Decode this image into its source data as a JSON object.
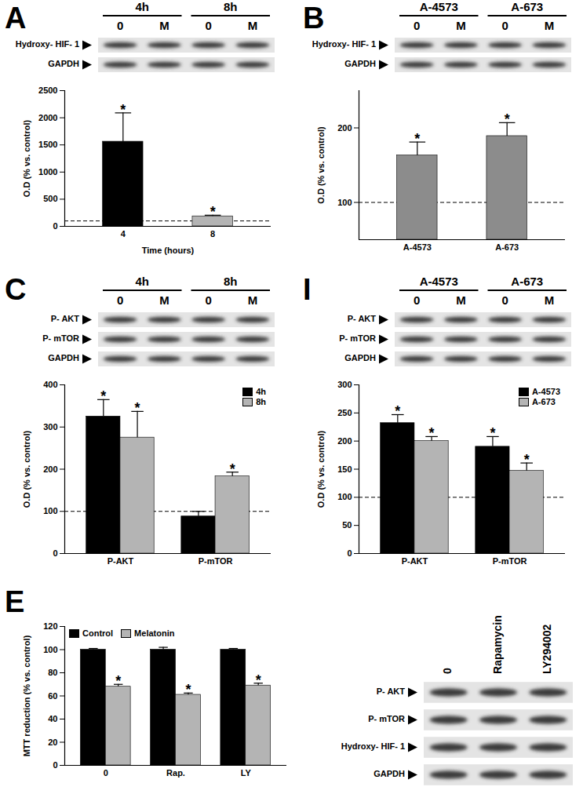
{
  "chart_data": [
    {
      "type": "bar",
      "panel": "A",
      "blot": {
        "groups": [
          {
            "label": "4h",
            "lanes": [
              "0",
              "M"
            ]
          },
          {
            "label": "8h",
            "lanes": [
              "0",
              "M"
            ]
          }
        ],
        "rows": [
          "Hydroxy- HIF- 1",
          "GAPDH"
        ]
      },
      "categories": [
        "4",
        "8"
      ],
      "values": [
        1560,
        185
      ],
      "errors": [
        530,
        20
      ],
      "colors": [
        "#000000",
        "#b4b4b4"
      ],
      "significance": [
        "*",
        "*"
      ],
      "xlabel": "Time (hours)",
      "ylabel": "O.D (% vs. control)",
      "ylim": [
        0,
        2500
      ],
      "yticks": [
        0,
        500,
        1000,
        1500,
        2000,
        2500
      ],
      "reference_line": 100
    },
    {
      "type": "bar",
      "panel": "B",
      "blot": {
        "groups": [
          {
            "label": "A-4573",
            "lanes": [
              "0",
              "M"
            ]
          },
          {
            "label": "A-673",
            "lanes": [
              "0",
              "M"
            ]
          }
        ],
        "rows": [
          "Hydroxy- HIF- 1",
          "GAPDH"
        ]
      },
      "categories": [
        "A-4573",
        "A-673"
      ],
      "values": [
        163,
        189
      ],
      "errors": [
        18,
        18
      ],
      "colors": [
        "#8c8c8c",
        "#8c8c8c"
      ],
      "significance": [
        "*",
        "*"
      ],
      "ylabel": "O.D (% vs. control)",
      "ylim": [
        50,
        250
      ],
      "yticks": [
        100,
        200
      ],
      "reference_line": 100
    },
    {
      "type": "bar",
      "panel": "C",
      "blot": {
        "groups": [
          {
            "label": "4h",
            "lanes": [
              "0",
              "M"
            ]
          },
          {
            "label": "8h",
            "lanes": [
              "0",
              "M"
            ]
          }
        ],
        "rows": [
          "P- AKT",
          "P- mTOR",
          "GAPDH"
        ]
      },
      "categories": [
        "P-AKT",
        "P-mTOR"
      ],
      "series": [
        {
          "name": "4h",
          "color": "#000000",
          "values": [
            325,
            88
          ],
          "errors": [
            40,
            12
          ],
          "significance": [
            "*",
            null
          ]
        },
        {
          "name": "8h",
          "color": "#b4b4b4",
          "values": [
            275,
            183
          ],
          "errors": [
            62,
            10
          ],
          "significance": [
            "*",
            "*"
          ]
        }
      ],
      "ylabel": "O.D (% vs. control)",
      "legend": "top-right",
      "ylim": [
        0,
        400
      ],
      "yticks": [
        0,
        100,
        200,
        300,
        400
      ],
      "reference_line": 100
    },
    {
      "type": "bar",
      "panel": "I",
      "blot": {
        "groups": [
          {
            "label": "A-4573",
            "lanes": [
              "0",
              "M"
            ]
          },
          {
            "label": "A-673",
            "lanes": [
              "0",
              "M"
            ]
          }
        ],
        "rows": [
          "P- AKT",
          "P- mTOR",
          "GAPDH"
        ]
      },
      "categories": [
        "P-AKT",
        "P-mTOR"
      ],
      "series": [
        {
          "name": "A-4573",
          "color": "#000000",
          "values": [
            232,
            190
          ],
          "errors": [
            15,
            18
          ],
          "significance": [
            "*",
            "*"
          ]
        },
        {
          "name": "A-673",
          "color": "#b4b4b4",
          "values": [
            200,
            147
          ],
          "errors": [
            8,
            14
          ],
          "significance": [
            "*",
            "*"
          ]
        }
      ],
      "ylabel": "O.D (% vs. control)",
      "legend": "top-right",
      "ylim": [
        0,
        300
      ],
      "yticks": [
        0,
        50,
        100,
        150,
        200,
        250,
        300
      ],
      "reference_line": 100
    },
    {
      "type": "bar",
      "panel": "E",
      "blot": {
        "lanes": [
          "0",
          "Rapamycin",
          "LY294002"
        ],
        "rows": [
          "P- AKT",
          "P- mTOR",
          "Hydroxy- HIF- 1",
          "GAPDH"
        ]
      },
      "categories": [
        "0",
        "Rap.",
        "LY"
      ],
      "series": [
        {
          "name": "Control",
          "color": "#000000",
          "values": [
            100,
            100,
            100
          ],
          "errors": [
            1,
            2,
            1
          ],
          "significance": [
            null,
            null,
            null
          ]
        },
        {
          "name": "Melatonin",
          "color": "#b4b4b4",
          "values": [
            68,
            61,
            69
          ],
          "errors": [
            2,
            1.5,
            2
          ],
          "significance": [
            "*",
            "*",
            "*"
          ]
        }
      ],
      "ylabel": "MTT reduction (% vs. control)",
      "legend": "top-left",
      "ylim": [
        0,
        120
      ],
      "yticks": [
        0,
        20,
        40,
        60,
        80,
        100,
        120
      ]
    }
  ]
}
